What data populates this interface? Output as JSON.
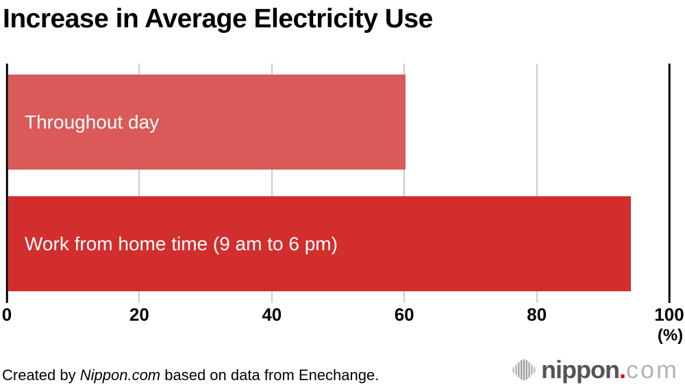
{
  "title": "Increase in Average Electricity Use",
  "chart_data": {
    "type": "bar",
    "orientation": "horizontal",
    "title": "Increase in Average Electricity Use",
    "categories": [
      "Throughout day",
      "Work from home time (9 am to 6 pm)"
    ],
    "values": [
      60,
      94
    ],
    "unit": "%",
    "xlim": [
      0,
      100
    ],
    "x_ticks": [
      0,
      20,
      40,
      60,
      80,
      100
    ],
    "x_unit_label": "(%)",
    "bar_colors": [
      "#d95a58",
      "#d32e2e"
    ],
    "bar_label_color": "#ffffff",
    "grid": true,
    "gridline_color": "#cccccc",
    "axis_color": "#000000",
    "legend": "none"
  },
  "footer": {
    "credit": {
      "prefix": "Created by ",
      "source": "Nippon.com",
      "suffix": " based on data from Enechange."
    },
    "logo": {
      "icon": "soundwave-bars-icon",
      "name": "nippon",
      "dot": ".",
      "tld": "com",
      "name_color": "#555555",
      "dot_color": "#e60012",
      "tld_color": "#b3b3b3",
      "icon_color": "#9b9b9b"
    }
  }
}
